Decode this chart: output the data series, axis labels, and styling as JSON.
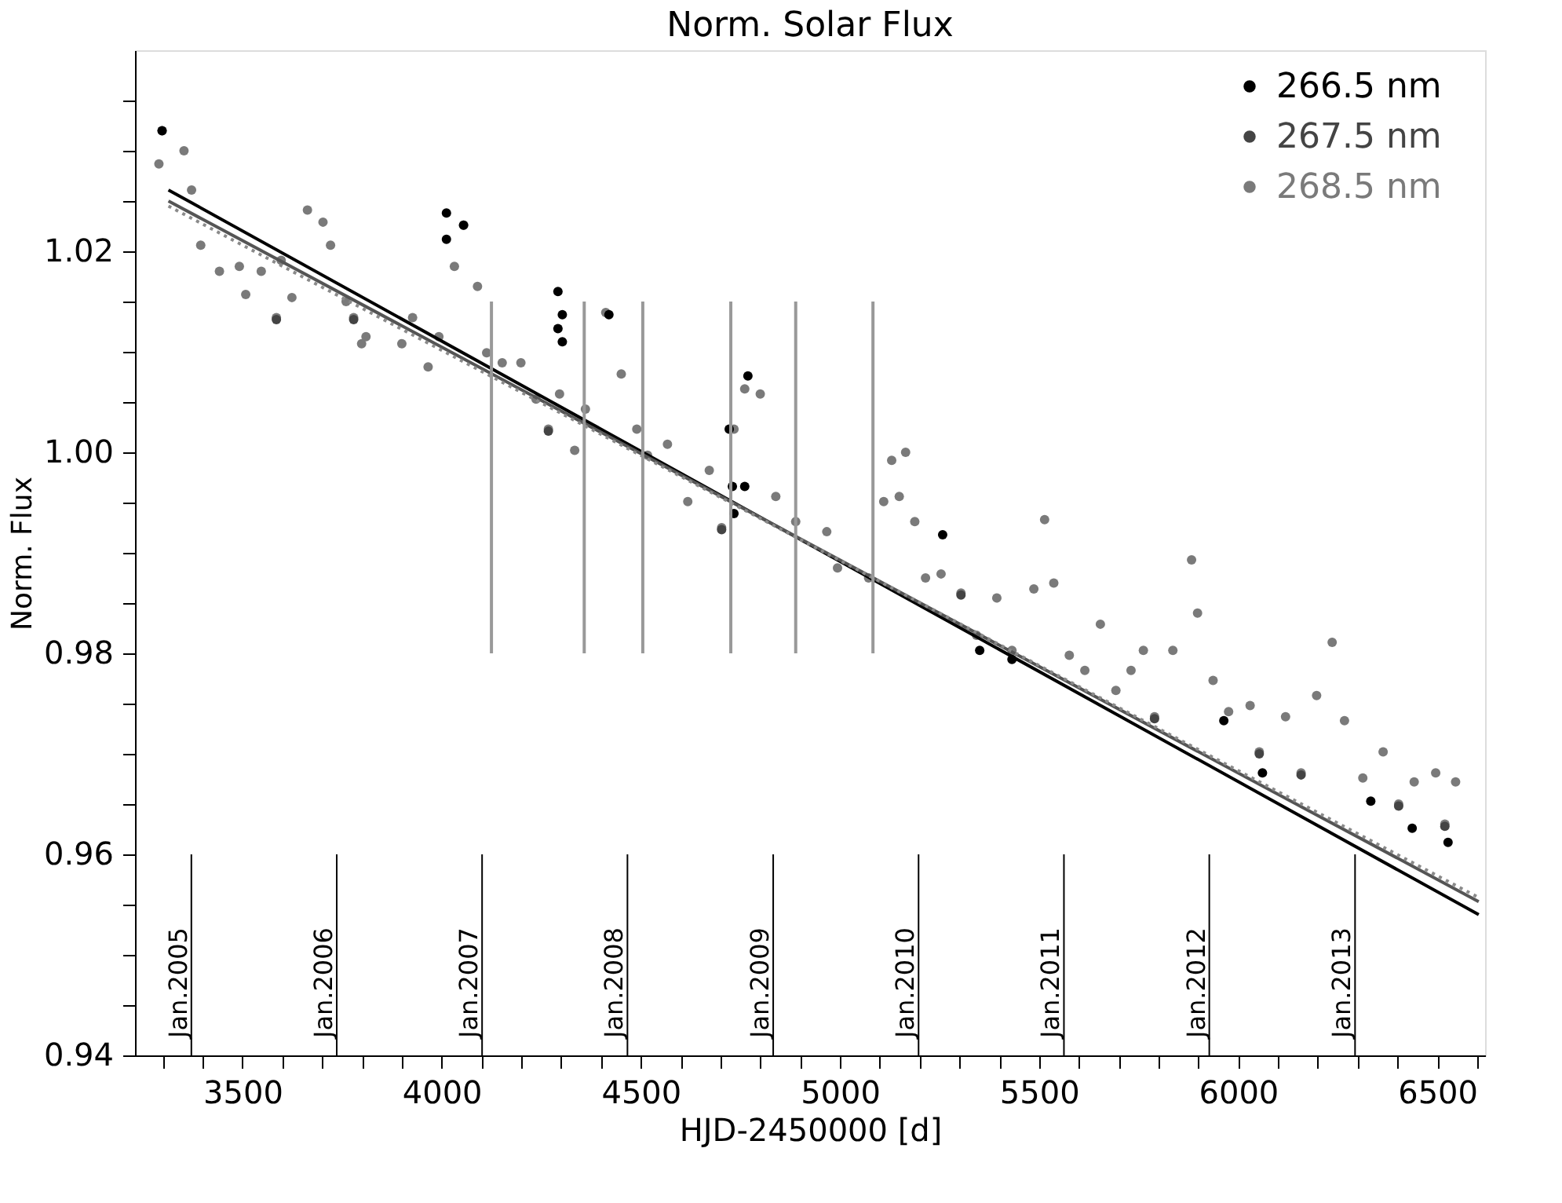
{
  "chart_data": {
    "type": "scatter",
    "title": "Norm. Solar Flux",
    "xlabel": "HJD-2450000 [d]",
    "ylabel": "Norm. Flux",
    "xlim": [
      3230,
      6620
    ],
    "ylim": [
      0.94,
      1.04
    ],
    "xticks": [
      {
        "value": 3300,
        "label": null
      },
      {
        "value": 3400,
        "label": null
      },
      3500,
      {
        "value": 3600,
        "label": null
      },
      {
        "value": 3700,
        "label": null
      },
      {
        "value": 3800,
        "label": null
      },
      {
        "value": 3900,
        "label": null
      },
      4000,
      {
        "value": 4100,
        "label": null
      },
      {
        "value": 4200,
        "label": null
      },
      {
        "value": 4300,
        "label": null
      },
      {
        "value": 4400,
        "label": null
      },
      4500,
      {
        "value": 4600,
        "label": null
      },
      {
        "value": 4700,
        "label": null
      },
      {
        "value": 4800,
        "label": null
      },
      {
        "value": 4900,
        "label": null
      },
      5000,
      {
        "value": 5100,
        "label": null
      },
      {
        "value": 5200,
        "label": null
      },
      {
        "value": 5300,
        "label": null
      },
      {
        "value": 5400,
        "label": null
      },
      5500,
      {
        "value": 5600,
        "label": null
      },
      {
        "value": 5700,
        "label": null
      },
      {
        "value": 5800,
        "label": null
      },
      {
        "value": 5900,
        "label": null
      },
      6000,
      {
        "value": 6100,
        "label": null
      },
      {
        "value": 6200,
        "label": null
      },
      {
        "value": 6300,
        "label": null
      },
      {
        "value": 6400,
        "label": null
      },
      6500,
      {
        "value": 6600,
        "label": null
      }
    ],
    "yticks": [
      0.94,
      {
        "value": 0.945,
        "label": null
      },
      {
        "value": 0.95,
        "label": null
      },
      {
        "value": 0.955,
        "label": null
      },
      0.96,
      {
        "value": 0.965,
        "label": null
      },
      {
        "value": 0.97,
        "label": null
      },
      {
        "value": 0.975,
        "label": null
      },
      0.98,
      {
        "value": 0.985,
        "label": null
      },
      {
        "value": 0.99,
        "label": null
      },
      {
        "value": 0.995,
        "label": null
      },
      {
        "value": 1.0,
        "label": "1.00"
      },
      {
        "value": 1.005,
        "label": null
      },
      {
        "value": 1.01,
        "label": null
      },
      {
        "value": 1.015,
        "label": null
      },
      1.02,
      {
        "value": 1.025,
        "label": null
      },
      {
        "value": 1.03,
        "label": null
      },
      {
        "value": 1.035,
        "label": null
      }
    ],
    "grid": false,
    "legend": "top right",
    "marker": "circle",
    "series": [
      {
        "name": "268.5 nm",
        "color": "#7a7a7a",
        "x": [
          3290,
          3298,
          3353,
          3372,
          3395,
          3442,
          3492,
          3508,
          3547,
          3585,
          3597,
          3624,
          3663,
          3702,
          3721,
          3760,
          3779,
          3799,
          3810,
          3900,
          3927,
          3966,
          3993,
          4032,
          4055,
          4090,
          4113,
          4152,
          4199,
          4237,
          4268,
          4296,
          4334,
          4361,
          4412,
          4451,
          4490,
          4517,
          4567,
          4618,
          4672,
          4703,
          4734,
          4761,
          4800,
          4839,
          4889,
          4967,
          4994,
          5072,
          5110,
          5130,
          5149,
          5165,
          5188,
          5215,
          5254,
          5304,
          5343,
          5394,
          5432,
          5487,
          5514,
          5537,
          5576,
          5615,
          5654,
          5693,
          5731,
          5762,
          5790,
          5836,
          5883,
          5898,
          5937,
          5976,
          6030,
          6053,
          6119,
          6158,
          6197,
          6236,
          6267,
          6313,
          6364,
          6403,
          6442,
          6496,
          6519,
          6546
        ],
        "values": [
          1.0287,
          1.032,
          1.03,
          1.0261,
          1.0206,
          1.018,
          1.0185,
          1.0157,
          1.018,
          1.0134,
          1.0191,
          1.0154,
          1.0241,
          1.0229,
          1.0206,
          1.015,
          1.0134,
          1.0108,
          1.0115,
          1.0108,
          1.0134,
          1.0085,
          1.0115,
          1.0185,
          1.0226,
          1.0165,
          1.0099,
          1.0089,
          1.0089,
          1.0053,
          1.0023,
          1.0058,
          1.0002,
          1.0043,
          1.0139,
          1.0078,
          1.0023,
          0.9997,
          1.0008,
          0.9951,
          0.9982,
          0.9925,
          1.0023,
          1.0063,
          1.0058,
          0.9956,
          0.9931,
          0.9921,
          0.9885,
          0.9875,
          0.9951,
          0.9992,
          0.9956,
          1.0,
          0.9931,
          0.9875,
          0.9879,
          0.986,
          0.9818,
          0.9855,
          0.9803,
          0.9864,
          0.9933,
          0.987,
          0.9798,
          0.9783,
          0.9829,
          0.9763,
          0.9783,
          0.9803,
          0.9737,
          0.9803,
          0.9893,
          0.984,
          0.9773,
          0.9742,
          0.9748,
          0.9702,
          0.9737,
          0.9681,
          0.9758,
          0.9811,
          0.9733,
          0.9676,
          0.9702,
          0.965,
          0.9672,
          0.9681,
          0.963,
          0.9672
        ]
      },
      {
        "name": "267.5 nm",
        "color": "#444444",
        "x": [
          3585,
          3779,
          4268,
          4703,
          5304,
          5790,
          6053,
          6158,
          6403,
          6519
        ],
        "values": [
          1.0132,
          1.0132,
          1.0021,
          0.9923,
          0.9858,
          0.9735,
          0.97,
          0.9679,
          0.9648,
          0.9628
        ]
      },
      {
        "name": "266.5 nm",
        "color": "#000000",
        "x": [
          3298,
          4012,
          4012,
          4055,
          4292,
          4303,
          4292,
          4303,
          4420,
          4722,
          4730,
          4734,
          4761,
          4769,
          5258,
          5351,
          5432,
          5964,
          6061,
          6333,
          6437,
          6527
        ],
        "values": [
          1.032,
          1.0238,
          1.0212,
          1.0226,
          1.016,
          1.0137,
          1.0123,
          1.011,
          1.0137,
          1.0023,
          0.9966,
          0.9939,
          0.9966,
          1.0076,
          0.9918,
          0.9803,
          0.9794,
          0.9733,
          0.9681,
          0.9653,
          0.9626,
          0.9612
        ]
      },
      {
        "type": "line",
        "marker": "none",
        "line_style": "solid",
        "color": "#000000",
        "x": [
          3314,
          6604
        ],
        "values": [
          1.0261,
          0.954
        ]
      },
      {
        "type": "line",
        "marker": "none",
        "line_style": "solid",
        "color": "#555555",
        "x": [
          3314,
          6604
        ],
        "values": [
          1.025,
          0.9553
        ]
      },
      {
        "type": "line",
        "marker": "none",
        "line_style": "dotted",
        "color": "#8a8a8a",
        "x": [
          3314,
          6604
        ],
        "values": [
          1.0245,
          0.9557
        ]
      },
      {
        "type": "line",
        "marker": "none",
        "line_style": "solid",
        "color": "#999999",
        "x": [
          4125,
          4125
        ],
        "values": [
          0.98,
          1.015
        ]
      },
      {
        "type": "line",
        "marker": "none",
        "line_style": "solid",
        "color": "#999999",
        "x": [
          4358,
          4358
        ],
        "values": [
          0.98,
          1.015
        ]
      },
      {
        "type": "line",
        "marker": "none",
        "line_style": "solid",
        "color": "#999999",
        "x": [
          4505,
          4505
        ],
        "values": [
          0.98,
          1.015
        ]
      },
      {
        "type": "line",
        "marker": "none",
        "line_style": "solid",
        "color": "#999999",
        "x": [
          4726,
          4726
        ],
        "values": [
          0.98,
          1.015
        ]
      },
      {
        "type": "line",
        "marker": "none",
        "line_style": "solid",
        "color": "#999999",
        "x": [
          4889,
          4889
        ],
        "values": [
          0.98,
          1.015
        ]
      },
      {
        "type": "line",
        "marker": "none",
        "line_style": "solid",
        "color": "#999999",
        "x": [
          5083,
          5083
        ],
        "values": [
          0.98,
          1.015
        ]
      }
    ],
    "ref_lines": [
      {
        "axis": "x",
        "value": 3371.5,
        "label": "Jan.2005"
      },
      {
        "axis": "x",
        "value": 3736.5,
        "label": "Jan.2006"
      },
      {
        "axis": "x",
        "value": 4101.5,
        "label": "Jan.2007"
      },
      {
        "axis": "x",
        "value": 4466.5,
        "label": "Jan.2008"
      },
      {
        "axis": "x",
        "value": 4832.5,
        "label": "Jan.2009"
      },
      {
        "axis": "x",
        "value": 5197.5,
        "label": "Jan.2010"
      },
      {
        "axis": "x",
        "value": 5562.5,
        "label": "Jan.2011"
      },
      {
        "axis": "x",
        "value": 5927.5,
        "label": "Jan.2012"
      },
      {
        "axis": "x",
        "value": 6293.5,
        "label": "Jan.2013"
      }
    ]
  }
}
